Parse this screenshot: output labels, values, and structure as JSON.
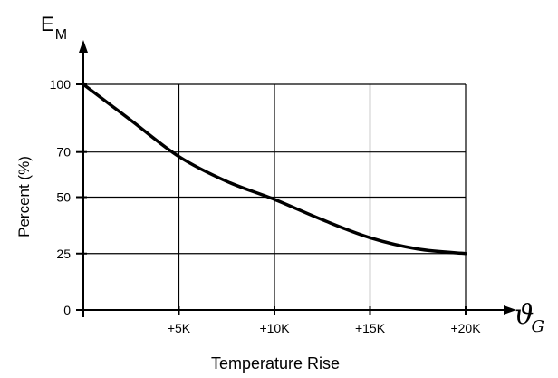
{
  "chart_data": {
    "type": "line",
    "ylabel": "Percent (%)",
    "xlabel": "Temperature Rise",
    "y_axis_symbol": {
      "main": "E",
      "sub": "M"
    },
    "x_axis_symbol": {
      "main": "ϑ",
      "sub": "G"
    },
    "x_ticks": [
      {
        "value": 0,
        "label": ""
      },
      {
        "value": 5,
        "label": "+5K"
      },
      {
        "value": 10,
        "label": "+10K"
      },
      {
        "value": 15,
        "label": "+15K"
      },
      {
        "value": 20,
        "label": "+20K"
      }
    ],
    "y_ticks": [
      {
        "value": 0,
        "label": "0"
      },
      {
        "value": 25,
        "label": "25"
      },
      {
        "value": 50,
        "label": "50"
      },
      {
        "value": 70,
        "label": "70"
      },
      {
        "value": 100,
        "label": "100"
      }
    ],
    "xlim": [
      0,
      20
    ],
    "ylim": [
      0,
      100
    ],
    "grid": true,
    "series": [
      {
        "x": [
          0,
          2.5,
          5,
          7.5,
          10,
          12.5,
          15,
          17.5,
          20
        ],
        "y": [
          100,
          84,
          68,
          57,
          49,
          40,
          32,
          27,
          25
        ]
      }
    ],
    "line_color": "#000000"
  }
}
